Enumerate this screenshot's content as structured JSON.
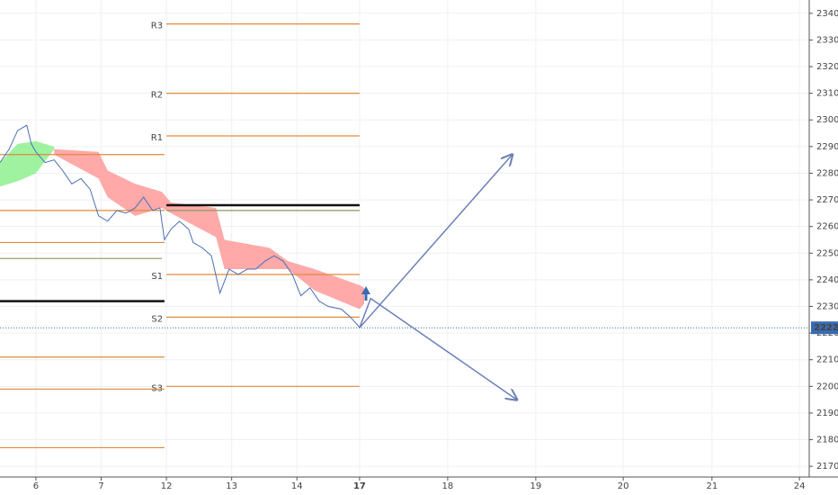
{
  "chart_data": {
    "type": "line",
    "xlim": [
      -0.55,
      11.85
    ],
    "xticks": [
      {
        "value": 0,
        "label": "6"
      },
      {
        "value": 1,
        "label": "7"
      },
      {
        "value": 2,
        "label": "12"
      },
      {
        "value": 3,
        "label": "13"
      },
      {
        "value": 4,
        "label": "14"
      },
      {
        "value": 4.96,
        "label": "17"
      },
      {
        "value": 6.31,
        "label": "18"
      },
      {
        "value": 7.66,
        "label": "19"
      },
      {
        "value": 9.0,
        "label": "20"
      },
      {
        "value": 10.36,
        "label": "21"
      },
      {
        "value": 11.7,
        "label": "24"
      }
    ],
    "ylim": [
      2166,
      2345
    ],
    "yticks": [
      2170,
      2180,
      2190,
      2200,
      2210,
      2220,
      2230,
      2240,
      2250,
      2260,
      2270,
      2280,
      2290,
      2300,
      2310,
      2320,
      2330,
      2340
    ],
    "grid": true,
    "series": [
      {
        "color": "#4a6fb5",
        "x": [
          -0.55,
          -0.41,
          -0.28,
          -0.14,
          -0.07,
          0,
          0.14,
          0.28,
          0.41,
          0.55,
          0.69,
          0.83,
          0.96,
          1.1,
          1.24,
          1.38,
          1.52,
          1.65,
          1.79,
          1.9,
          1.97,
          2.07,
          2.2,
          2.34,
          2.41,
          2.55,
          2.69,
          2.82,
          2.96,
          3.1,
          3.24,
          3.37,
          3.51,
          3.65,
          3.79,
          3.93,
          4.06,
          4.2,
          4.34,
          4.48,
          4.68,
          4.82,
          4.93,
          4.96
        ],
        "values": [
          2284,
          2289,
          2296,
          2298,
          2291,
          2288,
          2284,
          2285,
          2281,
          2276,
          2278,
          2274,
          2264,
          2262,
          2266,
          2265,
          2267,
          2271,
          2266,
          2267,
          2255,
          2259,
          2262,
          2259,
          2254,
          2252,
          2249,
          2235,
          2244,
          2242,
          2244,
          2244,
          2247,
          2249,
          2247,
          2242,
          2234,
          2237,
          2232,
          2230,
          2229,
          2226,
          2223,
          2222
        ]
      }
    ],
    "clouds": [
      {
        "color": "#ff9a9a",
        "x": [
          0.28,
          0.96,
          1.1,
          1.52,
          1.93,
          2.07,
          2.76,
          2.89,
          3.58,
          3.86,
          4.27,
          4.96,
          5.03
        ],
        "upper": [
          2289,
          2288,
          2281,
          2276,
          2273,
          2269,
          2267,
          2255,
          2252,
          2247,
          2244,
          2238,
          2237
        ],
        "lower": [
          2287,
          2278,
          2271,
          2264,
          2267,
          2265,
          2256,
          2244,
          2244,
          2244,
          2236,
          2229,
          2231
        ]
      },
      {
        "color": "#8ef08e",
        "x": [
          -0.55,
          -0.28,
          0,
          0.28
        ],
        "upper": [
          2284,
          2291,
          2292,
          2290
        ],
        "lower": [
          2275,
          2277,
          2280,
          2289
        ]
      }
    ],
    "levels": [
      {
        "label": "R3",
        "value": 2336,
        "x": [
          2,
          4.96
        ],
        "color": "#e08a3c"
      },
      {
        "label": "R2",
        "value": 2310,
        "x": [
          2,
          4.96
        ],
        "color": "#e08a3c"
      },
      {
        "label": "R1",
        "value": 2294,
        "x": [
          2,
          4.96
        ],
        "color": "#e08a3c"
      },
      {
        "label": "S1",
        "value": 2242,
        "x": [
          2,
          4.96
        ],
        "color": "#e08a3c"
      },
      {
        "label": "S2",
        "value": 2226,
        "x": [
          2,
          4.96
        ],
        "color": "#e08a3c"
      },
      {
        "label": "S3",
        "value": 2200,
        "x": [
          2,
          4.96
        ],
        "color": "#e08a3c"
      },
      {
        "value": 2268,
        "x": [
          2,
          4.96
        ],
        "color": "#111111"
      },
      {
        "value": 2266,
        "x": [
          2,
          4.96
        ],
        "color": "#8a9a5b"
      },
      {
        "value": 2287,
        "x": [
          -0.55,
          1.97
        ],
        "color": "#e08a3c"
      },
      {
        "value": 2266,
        "x": [
          -0.55,
          1.97
        ],
        "color": "#e08a3c"
      },
      {
        "value": 2254,
        "x": [
          -0.55,
          1.97
        ],
        "color": "#e08a3c"
      },
      {
        "value": 2248,
        "x": [
          -0.55,
          1.93
        ],
        "color": "#8a9a5b"
      },
      {
        "value": 2232,
        "x": [
          -0.55,
          1.97
        ],
        "color": "#111111"
      },
      {
        "value": 2211,
        "x": [
          -0.55,
          1.97
        ],
        "color": "#e08a3c"
      },
      {
        "value": 2199,
        "x": [
          -0.55,
          1.97
        ],
        "color": "#e08a3c"
      },
      {
        "value": 2177,
        "x": [
          -0.55,
          1.97
        ],
        "color": "#e08a3c"
      }
    ],
    "projections": [
      {
        "x": [
          4.96,
          7.3
        ],
        "y": [
          2222,
          2287
        ]
      },
      {
        "x": [
          4.96,
          5.13,
          7.37
        ],
        "y": [
          2222,
          2233,
          2195
        ]
      }
    ],
    "last_price": 2222
  }
}
